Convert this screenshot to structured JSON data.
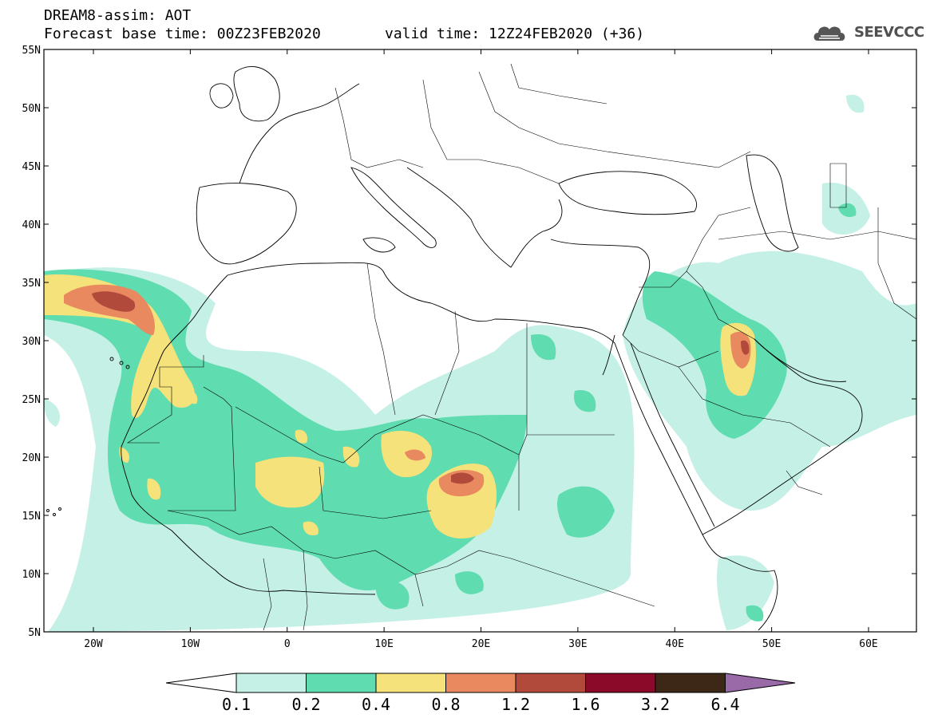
{
  "header": {
    "title_line1": "DREAM8-assim: AOT",
    "forecast_base": "Forecast base time: 00Z23FEB2020",
    "valid_time": "valid time: 12Z24FEB2020 (+36)",
    "logo_text": "SEEVCCC",
    "logo_icon": "cloud-icon"
  },
  "map": {
    "lat_labels": [
      "55N",
      "50N",
      "45N",
      "40N",
      "35N",
      "30N",
      "25N",
      "20N",
      "15N",
      "10N",
      "5N"
    ],
    "lon_labels": [
      "20W",
      "10W",
      "0",
      "10E",
      "20E",
      "30E",
      "40E",
      "50E",
      "60E"
    ],
    "variable": "AOT"
  },
  "colorbar": {
    "levels": [
      "0.1",
      "0.2",
      "0.4",
      "0.8",
      "1.2",
      "1.6",
      "3.2",
      "6.4"
    ],
    "colors": [
      "#ffffff",
      "#c5f0e6",
      "#5fdcb0",
      "#f5e27a",
      "#e8895f",
      "#b24a3c",
      "#8b0a2a",
      "#3d2818",
      "#9a6aa8"
    ]
  }
}
